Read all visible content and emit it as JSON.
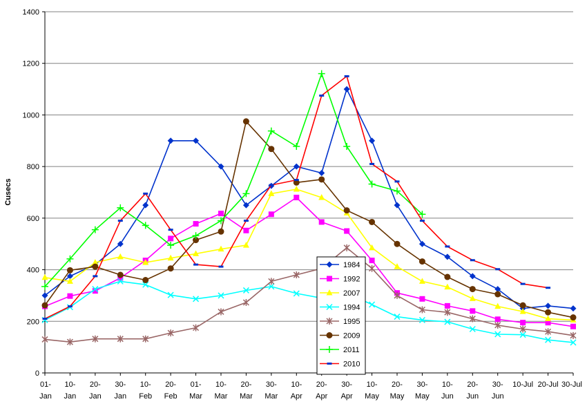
{
  "chart_data": {
    "type": "line",
    "title": "",
    "xlabel": "",
    "ylabel": "Cusecs",
    "ylim": [
      0,
      1400
    ],
    "yticks": [
      0,
      200,
      400,
      600,
      800,
      1000,
      1200,
      1400
    ],
    "grid": "horizontal",
    "legend_position": "center-bottom",
    "categories": [
      {
        "top": "01-",
        "bottom": "Jan"
      },
      {
        "top": "10-",
        "bottom": "Jan"
      },
      {
        "top": "20-",
        "bottom": "Jan"
      },
      {
        "top": "30-",
        "bottom": "Jan"
      },
      {
        "top": "10-",
        "bottom": "Feb"
      },
      {
        "top": "20-",
        "bottom": "Feb"
      },
      {
        "top": "01-",
        "bottom": "Mar"
      },
      {
        "top": "10-",
        "bottom": "Mar"
      },
      {
        "top": "20-",
        "bottom": "Mar"
      },
      {
        "top": "30-",
        "bottom": "Mar"
      },
      {
        "top": "10-",
        "bottom": "Apr"
      },
      {
        "top": "20-",
        "bottom": "Apr"
      },
      {
        "top": "30-",
        "bottom": "Apr"
      },
      {
        "top": "10-",
        "bottom": "May"
      },
      {
        "top": "20-",
        "bottom": "May"
      },
      {
        "top": "30-",
        "bottom": "May"
      },
      {
        "top": "10-",
        "bottom": "Jun"
      },
      {
        "top": "20-",
        "bottom": "Jun"
      },
      {
        "top": "30-",
        "bottom": "Jun"
      },
      {
        "top": "10-Jul",
        "bottom": ""
      },
      {
        "top": "20-Jul",
        "bottom": ""
      },
      {
        "top": "30-Jul",
        "bottom": ""
      }
    ],
    "series": [
      {
        "name": "1984",
        "color": "#0033cc",
        "marker": "diamond",
        "values": [
          300,
          375,
          420,
          500,
          650,
          900,
          900,
          800,
          650,
          725,
          800,
          775,
          1100,
          900,
          650,
          500,
          450,
          375,
          325,
          250,
          260,
          250
        ]
      },
      {
        "name": "1992",
        "color": "#ff00ff",
        "marker": "square",
        "values": [
          258,
          298,
          318,
          368,
          436,
          521,
          578,
          618,
          552,
          615,
          680,
          585,
          550,
          436,
          310,
          287,
          260,
          240,
          208,
          195,
          195,
          180
        ]
      },
      {
        "name": "2007",
        "color": "#ffff00",
        "marker": "triangle",
        "values": [
          370,
          355,
          428,
          450,
          428,
          445,
          462,
          480,
          495,
          695,
          712,
          680,
          620,
          485,
          412,
          355,
          333,
          288,
          258,
          238,
          210,
          205
        ]
      },
      {
        "name": "1994",
        "color": "#00ffff",
        "marker": "x",
        "values": [
          205,
          255,
          325,
          355,
          342,
          302,
          287,
          300,
          320,
          335,
          308,
          290,
          310,
          265,
          218,
          205,
          198,
          170,
          150,
          148,
          128,
          118
        ]
      },
      {
        "name": "1995",
        "color": "#996666",
        "marker": "star",
        "values": [
          130,
          120,
          132,
          132,
          132,
          155,
          175,
          237,
          273,
          355,
          380,
          405,
          485,
          405,
          300,
          245,
          235,
          210,
          185,
          170,
          160,
          145
        ]
      },
      {
        "name": "2009",
        "color": "#663300",
        "marker": "circle",
        "values": [
          262,
          398,
          412,
          380,
          360,
          405,
          515,
          548,
          975,
          868,
          738,
          750,
          630,
          585,
          500,
          432,
          372,
          325,
          305,
          262,
          235,
          215
        ]
      },
      {
        "name": "2011",
        "color": "#00ff00",
        "marker": "plus",
        "values": [
          335,
          442,
          555,
          640,
          572,
          495,
          532,
          590,
          695,
          938,
          878,
          1160,
          878,
          732,
          705,
          615,
          null,
          null,
          null,
          null,
          null,
          null
        ]
      },
      {
        "name": "2010",
        "color": "#ff0000",
        "marker": "dash",
        "values": [
          210,
          258,
          375,
          590,
          695,
          555,
          420,
          412,
          590,
          728,
          748,
          1075,
          1150,
          810,
          742,
          590,
          490,
          437,
          402,
          345,
          330,
          null
        ]
      }
    ]
  }
}
